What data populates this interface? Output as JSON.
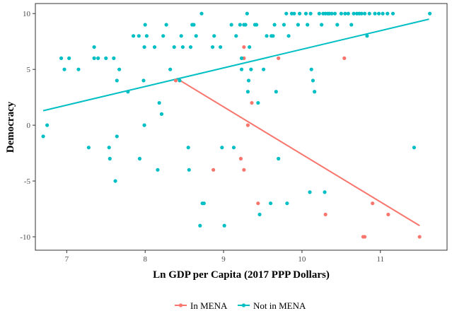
{
  "chart_data": {
    "type": "scatter",
    "title": "",
    "xlabel": "Ln GDP per Capita (2017 PPP Dollars)",
    "ylabel": "Democracy",
    "xlim": [
      6.6,
      11.85
    ],
    "ylim": [
      -11.2,
      10.9
    ],
    "x_ticks": [
      7,
      8,
      9,
      10,
      11
    ],
    "y_ticks": [
      -10,
      -5,
      0,
      5,
      10
    ],
    "grid": false,
    "legend_position": "bottom",
    "series": [
      {
        "name": "In MENA",
        "color": "#F8766D",
        "points": [
          [
            8.39,
            4
          ],
          [
            9.26,
            7
          ],
          [
            9.26,
            6
          ],
          [
            9.36,
            2
          ],
          [
            9.31,
            0
          ],
          [
            9.7,
            6
          ],
          [
            10.54,
            6
          ],
          [
            9.22,
            -3
          ],
          [
            9.26,
            -4
          ],
          [
            8.87,
            -4
          ],
          [
            9.44,
            -7
          ],
          [
            10.3,
            -8
          ],
          [
            10.9,
            -7
          ],
          [
            11.1,
            -8
          ],
          [
            10.78,
            -10
          ],
          [
            10.8,
            -10
          ],
          [
            11.5,
            -10
          ]
        ],
        "fit_line": {
          "x": [
            8.4,
            11.5
          ],
          "y": [
            4.2,
            -9.0
          ]
        }
      },
      {
        "name": "Not in MENA",
        "color": "#00BFC4",
        "points": [
          [
            6.7,
            -1
          ],
          [
            6.75,
            0
          ],
          [
            6.93,
            6
          ],
          [
            6.97,
            5
          ],
          [
            7.03,
            6
          ],
          [
            7.15,
            5
          ],
          [
            7.28,
            -2
          ],
          [
            7.35,
            7
          ],
          [
            7.35,
            6
          ],
          [
            7.4,
            6
          ],
          [
            7.5,
            6
          ],
          [
            7.54,
            -2
          ],
          [
            7.55,
            -3
          ],
          [
            7.6,
            6
          ],
          [
            7.62,
            -5
          ],
          [
            7.64,
            4
          ],
          [
            7.64,
            -1
          ],
          [
            7.67,
            5
          ],
          [
            7.78,
            3
          ],
          [
            7.85,
            8
          ],
          [
            7.92,
            8
          ],
          [
            7.93,
            -3
          ],
          [
            7.98,
            4
          ],
          [
            7.99,
            0
          ],
          [
            7.99,
            7
          ],
          [
            8.0,
            9
          ],
          [
            8.02,
            8
          ],
          [
            8.12,
            7
          ],
          [
            8.16,
            -4
          ],
          [
            8.18,
            2
          ],
          [
            8.21,
            1
          ],
          [
            8.23,
            8
          ],
          [
            8.27,
            9
          ],
          [
            8.32,
            5
          ],
          [
            8.37,
            7
          ],
          [
            8.44,
            4
          ],
          [
            8.46,
            8
          ],
          [
            8.48,
            7
          ],
          [
            8.55,
            -2
          ],
          [
            8.56,
            -4
          ],
          [
            8.58,
            7
          ],
          [
            8.6,
            9
          ],
          [
            8.62,
            9
          ],
          [
            8.65,
            8
          ],
          [
            8.7,
            -9
          ],
          [
            8.72,
            10
          ],
          [
            8.73,
            -7
          ],
          [
            8.75,
            -7
          ],
          [
            8.86,
            7
          ],
          [
            8.88,
            8
          ],
          [
            8.96,
            7
          ],
          [
            8.98,
            -2
          ],
          [
            9.01,
            -9
          ],
          [
            9.1,
            9
          ],
          [
            9.13,
            -2
          ],
          [
            9.16,
            8
          ],
          [
            9.21,
            9
          ],
          [
            9.23,
            5
          ],
          [
            9.23,
            6
          ],
          [
            9.26,
            9
          ],
          [
            9.28,
            9
          ],
          [
            9.3,
            10
          ],
          [
            9.31,
            3
          ],
          [
            9.32,
            4
          ],
          [
            9.33,
            7
          ],
          [
            9.35,
            5
          ],
          [
            9.4,
            9
          ],
          [
            9.42,
            9
          ],
          [
            9.44,
            2
          ],
          [
            9.46,
            -8
          ],
          [
            9.51,
            5
          ],
          [
            9.55,
            8
          ],
          [
            9.6,
            -7
          ],
          [
            9.61,
            8
          ],
          [
            9.63,
            8
          ],
          [
            9.65,
            9
          ],
          [
            9.67,
            3
          ],
          [
            9.7,
            -3
          ],
          [
            9.77,
            9
          ],
          [
            9.8,
            10
          ],
          [
            9.81,
            -7
          ],
          [
            9.83,
            8
          ],
          [
            9.87,
            10
          ],
          [
            9.9,
            10
          ],
          [
            9.95,
            9
          ],
          [
            9.97,
            10
          ],
          [
            10.05,
            10
          ],
          [
            10.07,
            9
          ],
          [
            10.1,
            -6
          ],
          [
            10.11,
            10
          ],
          [
            10.12,
            5
          ],
          [
            10.14,
            4
          ],
          [
            10.16,
            3
          ],
          [
            10.22,
            10
          ],
          [
            10.25,
            9
          ],
          [
            10.27,
            10
          ],
          [
            10.29,
            -6
          ],
          [
            10.3,
            10
          ],
          [
            10.33,
            10
          ],
          [
            10.35,
            10
          ],
          [
            10.38,
            10
          ],
          [
            10.42,
            10
          ],
          [
            10.45,
            9
          ],
          [
            10.5,
            10
          ],
          [
            10.55,
            10
          ],
          [
            10.59,
            10
          ],
          [
            10.63,
            9
          ],
          [
            10.66,
            10
          ],
          [
            10.7,
            10
          ],
          [
            10.73,
            10
          ],
          [
            10.76,
            10
          ],
          [
            10.8,
            10
          ],
          [
            10.83,
            8
          ],
          [
            10.86,
            10
          ],
          [
            10.93,
            10
          ],
          [
            10.98,
            10
          ],
          [
            11.03,
            10
          ],
          [
            11.09,
            10
          ],
          [
            11.16,
            10
          ],
          [
            11.43,
            -2
          ],
          [
            11.63,
            10
          ]
        ],
        "fit_line": {
          "x": [
            6.7,
            11.62
          ],
          "y": [
            1.3,
            9.5
          ]
        }
      }
    ]
  }
}
